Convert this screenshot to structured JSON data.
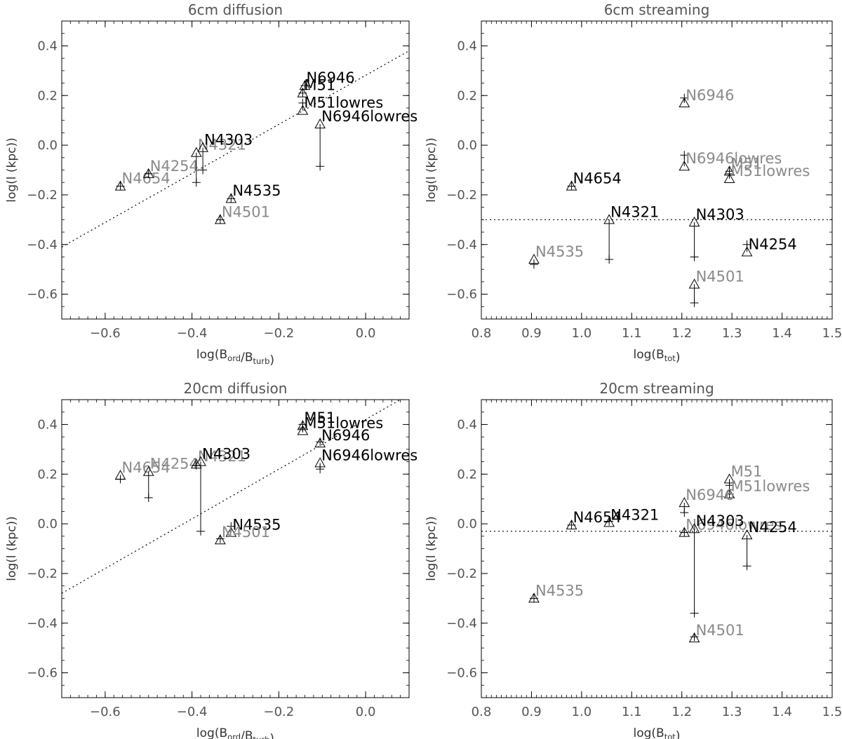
{
  "figure": {
    "colors": {
      "axis": "#000000",
      "label_gray": "#8a8a8a",
      "label_black": "#000000",
      "fit_line": "#000000"
    }
  },
  "chart_data": [
    {
      "type": "scatter",
      "title": "6cm diffusion",
      "xlabel": "log(B_ord/B_turb)",
      "ylabel": "log(l (kpc))",
      "xlim": [
        -0.7,
        0.1
      ],
      "ylim": [
        -0.7,
        0.5
      ],
      "xticks": [
        -0.6,
        -0.4,
        -0.2,
        0.0
      ],
      "yticks": [
        0.4,
        0.2,
        0.0,
        -0.2,
        -0.4,
        -0.6
      ],
      "fit_line": [
        [
          -0.7,
          -0.41
        ],
        [
          0.1,
          0.38
        ]
      ],
      "points": [
        {
          "label": "N4654",
          "x": -0.565,
          "y": -0.165,
          "yplus": -0.165,
          "highlight": false
        },
        {
          "label": "N4254",
          "x": -0.5,
          "y": -0.115,
          "yplus": -0.115,
          "highlight": false
        },
        {
          "label": "N4321",
          "x": -0.39,
          "y": -0.03,
          "yplus": -0.15,
          "highlight": false
        },
        {
          "label": "N4303",
          "x": -0.375,
          "y": -0.01,
          "yplus": -0.1,
          "highlight": true
        },
        {
          "label": "N4535",
          "x": -0.31,
          "y": -0.215,
          "yplus": -0.215,
          "highlight": true
        },
        {
          "label": "N4501",
          "x": -0.335,
          "y": -0.3,
          "yplus": -0.3,
          "highlight": false
        },
        {
          "label": "M51",
          "x": -0.145,
          "y": 0.21,
          "yplus": 0.21,
          "highlight": true
        },
        {
          "label": "N6946",
          "x": -0.14,
          "y": 0.24,
          "yplus": 0.24,
          "highlight": true
        },
        {
          "label": "M51lowres",
          "x": -0.145,
          "y": 0.14,
          "yplus": 0.17,
          "highlight": true
        },
        {
          "label": "N6946lowres",
          "x": -0.105,
          "y": 0.085,
          "yplus": -0.085,
          "highlight": true
        }
      ]
    },
    {
      "type": "scatter",
      "title": "6cm streaming",
      "xlabel": "log(B_tot)",
      "ylabel": "log(l (kpc))",
      "xlim": [
        0.8,
        1.5
      ],
      "ylim": [
        -0.7,
        0.5
      ],
      "xticks": [
        0.8,
        0.9,
        1.0,
        1.1,
        1.2,
        1.3,
        1.4,
        1.5
      ],
      "yticks": [
        0.4,
        0.2,
        0.0,
        -0.2,
        -0.4,
        -0.6
      ],
      "fit_line": [
        [
          0.8,
          -0.3
        ],
        [
          1.5,
          -0.3
        ]
      ],
      "points": [
        {
          "label": "N6946",
          "x": 1.205,
          "y": 0.17,
          "yplus": 0.19,
          "highlight": false
        },
        {
          "label": "N6946lowres",
          "x": 1.205,
          "y": -0.085,
          "yplus": -0.04,
          "highlight": false
        },
        {
          "label": "M51",
          "x": 1.295,
          "y": -0.105,
          "yplus": -0.105,
          "highlight": false
        },
        {
          "label": "M51lowres",
          "x": 1.295,
          "y": -0.135,
          "yplus": -0.115,
          "highlight": false
        },
        {
          "label": "N4654",
          "x": 0.98,
          "y": -0.165,
          "yplus": -0.165,
          "highlight": true
        },
        {
          "label": "N4321",
          "x": 1.055,
          "y": -0.3,
          "yplus": -0.46,
          "highlight": true
        },
        {
          "label": "N4321",
          "x": 1.055,
          "y": null,
          "yplus": null,
          "highlight": false
        },
        {
          "label": "N4303",
          "x": 1.225,
          "y": -0.31,
          "yplus": -0.45,
          "highlight": true
        },
        {
          "label": "N4303",
          "x": 1.225,
          "y": null,
          "yplus": null,
          "highlight": false
        },
        {
          "label": "N4254",
          "x": 1.33,
          "y": -0.43,
          "yplus": -0.4,
          "highlight": true
        },
        {
          "label": "N4254",
          "x": 1.33,
          "y": null,
          "yplus": null,
          "highlight": false
        },
        {
          "label": "N4535",
          "x": 0.905,
          "y": -0.46,
          "yplus": -0.48,
          "highlight": false
        },
        {
          "label": "N4501",
          "x": 1.225,
          "y": -0.56,
          "yplus": -0.635,
          "highlight": false
        }
      ]
    },
    {
      "type": "scatter",
      "title": "20cm diffusion",
      "xlabel": "log(B_ord/B_turb)",
      "ylabel": "log(l (kpc))",
      "xlim": [
        -0.7,
        0.1
      ],
      "ylim": [
        -0.7,
        0.5
      ],
      "xticks": [
        -0.6,
        -0.4,
        -0.2,
        0.0
      ],
      "yticks": [
        0.4,
        0.2,
        0.0,
        -0.2,
        -0.4,
        -0.6
      ],
      "fit_line": [
        [
          -0.7,
          -0.28
        ],
        [
          0.1,
          0.52
        ]
      ],
      "points": [
        {
          "label": "N4654",
          "x": -0.565,
          "y": 0.195,
          "yplus": 0.18,
          "highlight": false
        },
        {
          "label": "N4254",
          "x": -0.5,
          "y": 0.21,
          "yplus": 0.105,
          "highlight": false
        },
        {
          "label": "N4321",
          "x": -0.39,
          "y": 0.24,
          "yplus": 0.235,
          "highlight": false
        },
        {
          "label": "N4303",
          "x": -0.38,
          "y": 0.25,
          "yplus": -0.03,
          "highlight": true
        },
        {
          "label": "N4535",
          "x": -0.31,
          "y": -0.035,
          "yplus": -0.01,
          "highlight": true
        },
        {
          "label": "N4501",
          "x": -0.335,
          "y": -0.065,
          "yplus": -0.06,
          "highlight": false
        },
        {
          "label": "M51",
          "x": -0.145,
          "y": 0.395,
          "yplus": 0.4,
          "highlight": true
        },
        {
          "label": "M51lowres",
          "x": -0.145,
          "y": 0.375,
          "yplus": 0.385,
          "highlight": true
        },
        {
          "label": "N6946",
          "x": -0.105,
          "y": 0.325,
          "yplus": 0.33,
          "highlight": true
        },
        {
          "label": "N6946lowres",
          "x": -0.105,
          "y": 0.245,
          "yplus": 0.22,
          "highlight": true
        }
      ]
    },
    {
      "type": "scatter",
      "title": "20cm streaming",
      "xlabel": "log(B_tot)",
      "ylabel": "log(l (kpc))",
      "xlim": [
        0.8,
        1.5
      ],
      "ylim": [
        -0.7,
        0.5
      ],
      "xticks": [
        0.8,
        0.9,
        1.0,
        1.1,
        1.2,
        1.3,
        1.4,
        1.5
      ],
      "yticks": [
        0.4,
        0.2,
        0.0,
        -0.2,
        -0.4,
        -0.6
      ],
      "fit_line": [
        [
          0.8,
          -0.03
        ],
        [
          1.5,
          -0.03
        ]
      ],
      "points": [
        {
          "label": "M51",
          "x": 1.295,
          "y": 0.18,
          "yplus": 0.155,
          "highlight": false
        },
        {
          "label": "M51lowres",
          "x": 1.295,
          "y": 0.12,
          "yplus": 0.12,
          "highlight": false
        },
        {
          "label": "N6946",
          "x": 1.205,
          "y": 0.085,
          "yplus": 0.045,
          "highlight": false
        },
        {
          "label": "N6946lowres",
          "x": 1.205,
          "y": -0.035,
          "yplus": -0.035,
          "highlight": false
        },
        {
          "label": "N4654",
          "x": 0.98,
          "y": -0.005,
          "yplus": -0.005,
          "highlight": true
        },
        {
          "label": "N4321",
          "x": 1.055,
          "y": 0.005,
          "yplus": 0.01,
          "highlight": true
        },
        {
          "label": "N4303",
          "x": 1.225,
          "y": -0.02,
          "yplus": -0.36,
          "highlight": true
        },
        {
          "label": "N4254",
          "x": 1.33,
          "y": -0.045,
          "yplus": -0.17,
          "highlight": true
        },
        {
          "label": "N4535",
          "x": 0.905,
          "y": -0.3,
          "yplus": -0.3,
          "highlight": false
        },
        {
          "label": "N4501",
          "x": 1.225,
          "y": -0.46,
          "yplus": -0.455,
          "highlight": false
        }
      ]
    }
  ]
}
